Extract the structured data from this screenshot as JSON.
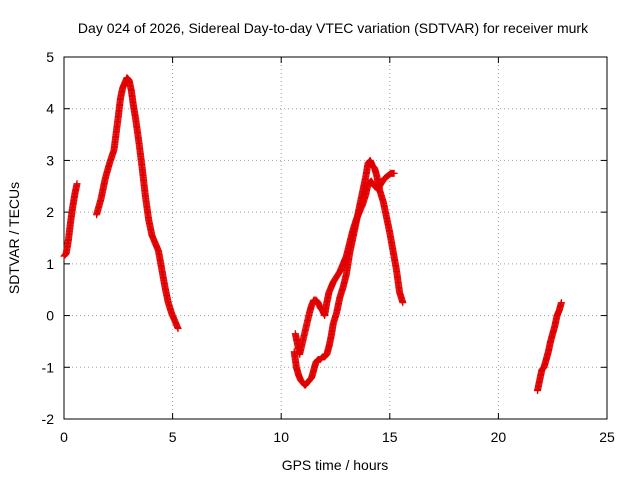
{
  "chart_data": {
    "type": "scatter",
    "title": "Day 024 of 2026, Sidereal Day-to-day VTEC variation (SDTVAR) for receiver murk",
    "xlabel": "GPS time / hours",
    "ylabel": "SDTVAR / TECUs",
    "xlim": [
      0,
      25
    ],
    "ylim": [
      -2,
      5
    ],
    "xticks": [
      0,
      5,
      10,
      15,
      20,
      25
    ],
    "yticks": [
      -2,
      -1,
      0,
      1,
      2,
      3,
      4,
      5
    ],
    "grid": true,
    "marker": "+",
    "color": "#e00000",
    "series": [
      {
        "name": "SDTVAR",
        "segments": [
          {
            "x": [
              0.0,
              0.1,
              0.2,
              0.3,
              0.4,
              0.5,
              0.6
            ],
            "y": [
              1.15,
              1.2,
              1.45,
              1.8,
              2.1,
              2.35,
              2.55
            ]
          },
          {
            "x": [
              1.5,
              1.7,
              1.9,
              2.1,
              2.3,
              2.5,
              2.6,
              2.7,
              2.8,
              2.9,
              3.0,
              3.1,
              3.2,
              3.3,
              3.45,
              3.6,
              3.75,
              3.9,
              4.05,
              4.2,
              4.35,
              4.5,
              4.65,
              4.8,
              4.95,
              5.1,
              5.25
            ],
            "y": [
              1.95,
              2.25,
              2.65,
              2.95,
              3.2,
              3.85,
              4.2,
              4.4,
              4.5,
              4.6,
              4.55,
              4.35,
              4.05,
              3.8,
              3.35,
              2.85,
              2.3,
              1.85,
              1.55,
              1.4,
              1.25,
              0.9,
              0.55,
              0.25,
              0.05,
              -0.1,
              -0.25
            ]
          },
          {
            "x": [
              10.6,
              10.7,
              10.8,
              10.9,
              11.0,
              11.1,
              11.2,
              11.3,
              11.4,
              11.5,
              11.6,
              11.7,
              11.8,
              11.9,
              12.0,
              12.1,
              12.2,
              12.3,
              12.4,
              12.55,
              12.7,
              12.85,
              13.0,
              13.15,
              13.3,
              13.45,
              13.6,
              13.75,
              13.9,
              14.0,
              14.1,
              14.2,
              14.3,
              14.4,
              14.55,
              14.7,
              14.85,
              15.0,
              15.15,
              15.3,
              15.45,
              15.6
            ],
            "y": [
              -0.7,
              -1.0,
              -1.15,
              -1.25,
              -1.3,
              -1.35,
              -1.3,
              -1.25,
              -1.2,
              -1.05,
              -0.9,
              -0.85,
              -0.85,
              -0.8,
              -0.8,
              -0.75,
              -0.6,
              -0.4,
              -0.15,
              0.05,
              0.35,
              0.55,
              0.8,
              1.2,
              1.5,
              1.8,
              2.1,
              2.4,
              2.7,
              2.95,
              3.0,
              2.9,
              2.85,
              2.7,
              2.4,
              2.2,
              1.9,
              1.6,
              1.25,
              0.9,
              0.45,
              0.25
            ]
          },
          {
            "x": [
              10.65,
              10.75,
              10.85,
              11.3,
              11.4,
              11.5,
              11.6,
              11.7,
              11.8,
              11.9,
              12.0,
              12.1,
              12.2,
              12.3,
              12.4,
              12.55,
              12.7,
              12.85,
              13.0,
              13.15,
              13.3,
              13.45,
              13.6,
              13.75,
              13.9,
              14.0,
              14.15,
              14.3,
              14.45,
              14.6,
              14.75,
              14.9,
              15.05,
              15.2
            ],
            "y": [
              -0.35,
              -0.55,
              -0.75,
              0.05,
              0.2,
              0.3,
              0.3,
              0.25,
              0.15,
              0.1,
              0.0,
              0.25,
              0.45,
              0.55,
              0.65,
              0.75,
              0.85,
              1.0,
              1.15,
              1.4,
              1.65,
              1.85,
              2.0,
              2.15,
              2.35,
              2.55,
              2.6,
              2.5,
              2.45,
              2.55,
              2.65,
              2.7,
              2.75,
              2.75
            ]
          },
          {
            "x": [
              21.8,
              21.9,
              22.0,
              22.1,
              22.2,
              22.3,
              22.4,
              22.5,
              22.6,
              22.7,
              22.8,
              22.9
            ],
            "y": [
              -1.45,
              -1.25,
              -1.05,
              -1.0,
              -0.85,
              -0.7,
              -0.5,
              -0.35,
              -0.2,
              0.0,
              0.1,
              0.25
            ]
          }
        ]
      }
    ]
  }
}
